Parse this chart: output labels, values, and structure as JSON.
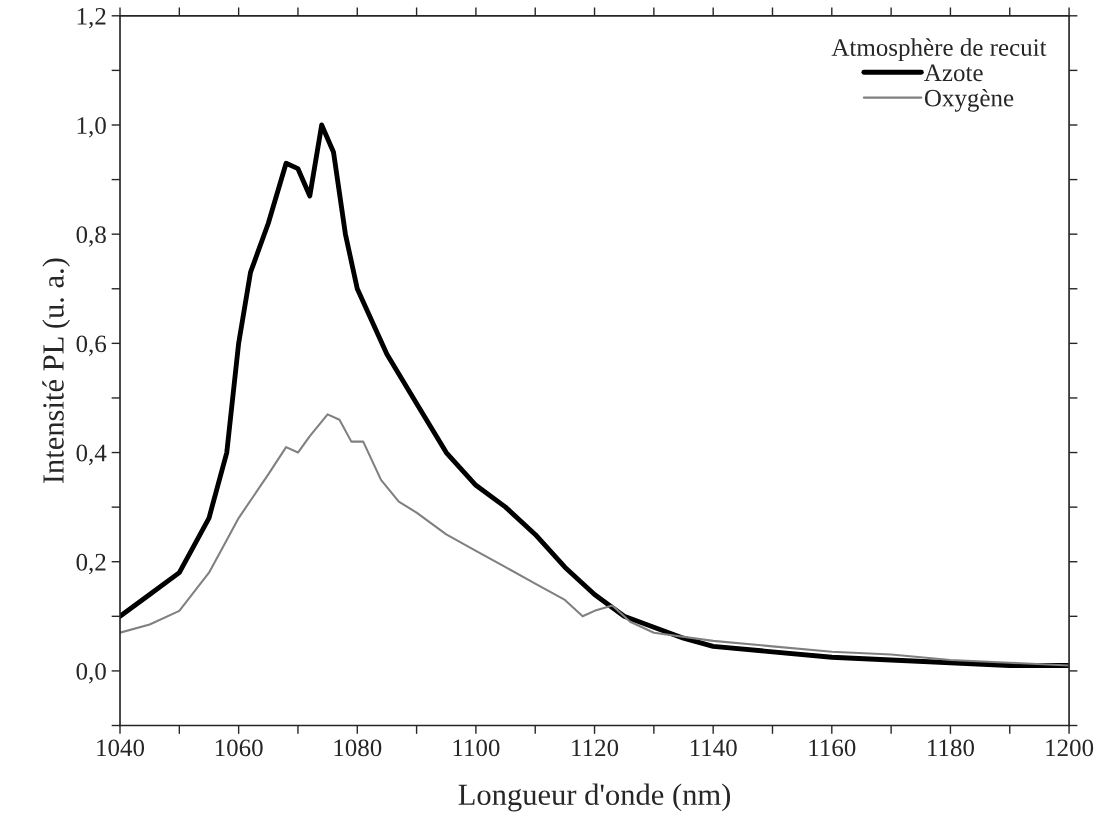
{
  "chart_data": {
    "type": "line",
    "xlabel": "Longueur d'onde (nm)",
    "ylabel": "Intensité PL (u. a.)",
    "legend_title": "Atmosphère de recuit",
    "xlim": [
      1040,
      1200
    ],
    "ylim": [
      -0.1,
      1.2
    ],
    "xticks": [
      1040,
      {
        "value": 1050,
        "label": null
      },
      1060,
      {
        "value": 1070,
        "label": null
      },
      1080,
      {
        "value": 1090,
        "label": null
      },
      1100,
      {
        "value": 1110,
        "label": null
      },
      1120,
      {
        "value": 1130,
        "label": null
      },
      1140,
      {
        "value": 1150,
        "label": null
      },
      1160,
      {
        "value": 1170,
        "label": null
      },
      1180,
      {
        "value": 1190,
        "label": null
      },
      1200
    ],
    "yticks": [
      {
        "value": -0.1,
        "label": null
      },
      {
        "value": 0.0,
        "label": "0,0"
      },
      {
        "value": 0.1,
        "label": null
      },
      {
        "value": 0.2,
        "label": "0,2"
      },
      {
        "value": 0.3,
        "label": null
      },
      {
        "value": 0.4,
        "label": "0,4"
      },
      {
        "value": 0.5,
        "label": null
      },
      {
        "value": 0.6,
        "label": "0,6"
      },
      {
        "value": 0.7,
        "label": null
      },
      {
        "value": 0.8,
        "label": "0,8"
      },
      {
        "value": 0.9,
        "label": null
      },
      {
        "value": 1.0,
        "label": "1,0"
      },
      {
        "value": 1.1,
        "label": null
      },
      {
        "value": 1.2,
        "label": "1,2"
      }
    ],
    "grid": false,
    "legend": "top right",
    "marker": "none",
    "line_style": "solid",
    "series": [
      {
        "name": "Azote",
        "color": "#000000",
        "x": [
          1040,
          1045,
          1050,
          1055,
          1058,
          1060,
          1062,
          1065,
          1068,
          1070,
          1072,
          1074,
          1076,
          1078,
          1080,
          1085,
          1090,
          1095,
          1100,
          1105,
          1110,
          1115,
          1120,
          1125,
          1130,
          1135,
          1140,
          1150,
          1160,
          1170,
          1180,
          1190,
          1200
        ],
        "values": [
          0.1,
          0.14,
          0.18,
          0.28,
          0.4,
          0.6,
          0.73,
          0.82,
          0.93,
          0.92,
          0.87,
          1.0,
          0.95,
          0.8,
          0.7,
          0.58,
          0.49,
          0.4,
          0.34,
          0.3,
          0.25,
          0.19,
          0.14,
          0.1,
          0.08,
          0.06,
          0.045,
          0.035,
          0.025,
          0.02,
          0.015,
          0.01,
          0.01
        ]
      },
      {
        "name": "Oxygène",
        "color": "#808080",
        "x": [
          1040,
          1045,
          1050,
          1055,
          1058,
          1060,
          1065,
          1068,
          1070,
          1072,
          1075,
          1077,
          1079,
          1081,
          1084,
          1087,
          1090,
          1095,
          1100,
          1105,
          1110,
          1115,
          1118,
          1120,
          1123,
          1126,
          1130,
          1140,
          1150,
          1160,
          1170,
          1180,
          1190,
          1200
        ],
        "values": [
          0.07,
          0.085,
          0.11,
          0.18,
          0.24,
          0.28,
          0.36,
          0.41,
          0.4,
          0.43,
          0.47,
          0.46,
          0.42,
          0.42,
          0.35,
          0.31,
          0.29,
          0.25,
          0.22,
          0.19,
          0.16,
          0.13,
          0.1,
          0.11,
          0.12,
          0.09,
          0.07,
          0.055,
          0.045,
          0.035,
          0.03,
          0.02,
          0.015,
          0.01
        ]
      }
    ]
  }
}
